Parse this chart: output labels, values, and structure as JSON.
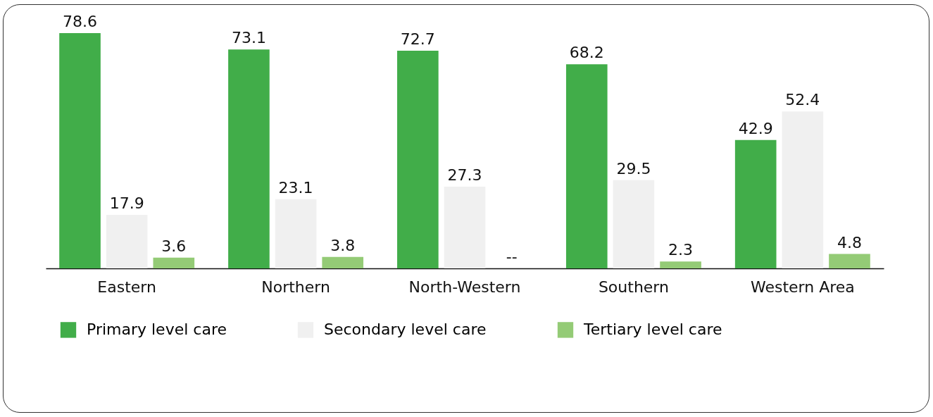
{
  "chart_data": {
    "type": "bar",
    "categories": [
      "Eastern",
      "Northern",
      "North-Western",
      "Southern",
      "Western Area"
    ],
    "series": [
      {
        "name": "Primary level care",
        "color": "#41ad49",
        "values": [
          78.6,
          73.1,
          72.7,
          68.2,
          42.9
        ],
        "value_labels": [
          "78.6",
          "73.1",
          "72.7",
          "68.2",
          "42.9"
        ]
      },
      {
        "name": "Secondary level care",
        "color": "#f0f0f0",
        "values": [
          17.9,
          23.1,
          27.3,
          29.5,
          52.4
        ],
        "value_labels": [
          "17.9",
          "23.1",
          "27.3",
          "29.5",
          "52.4"
        ]
      },
      {
        "name": "Tertiary level care",
        "color": "#94cb76",
        "values": [
          3.6,
          3.8,
          null,
          2.3,
          4.8
        ],
        "value_labels": [
          "3.6",
          "3.8",
          "--",
          "2.3",
          "4.8"
        ]
      }
    ],
    "legend": "bottom",
    "grid": false
  }
}
